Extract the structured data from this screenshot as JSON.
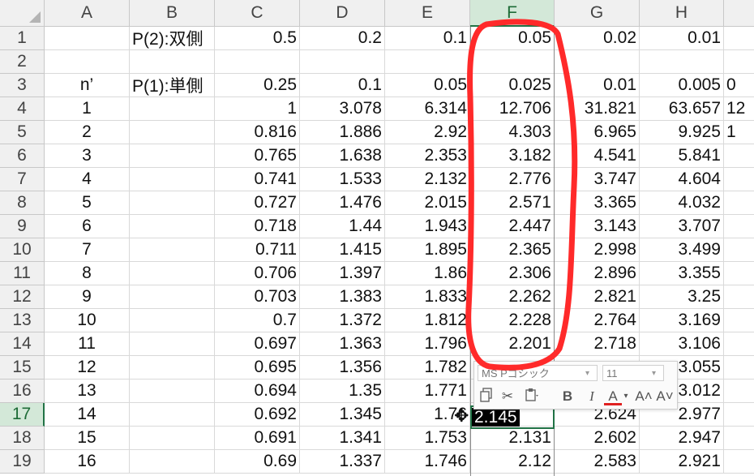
{
  "columns": [
    "A",
    "B",
    "C",
    "D",
    "E",
    "F",
    "G",
    "H"
  ],
  "selected_column": "F",
  "rows": [
    {
      "n": "1",
      "cells": [
        "",
        "P(2):双側",
        "0.5",
        "0.2",
        "0.1",
        "0.05",
        "0.02",
        "0.01"
      ]
    },
    {
      "n": "2",
      "cells": [
        "",
        "",
        "",
        "",
        "",
        "",
        "",
        ""
      ]
    },
    {
      "n": "3",
      "cells": [
        "n’",
        "P(1):単側",
        "0.25",
        "0.1",
        "0.05",
        "0.025",
        "0.01",
        "0.005"
      ]
    },
    {
      "n": "4",
      "cells": [
        "1",
        "",
        "1",
        "3.078",
        "6.314",
        "12.706",
        "31.821",
        "63.657"
      ]
    },
    {
      "n": "5",
      "cells": [
        "2",
        "",
        "0.816",
        "1.886",
        "2.92",
        "4.303",
        "6.965",
        "9.925"
      ]
    },
    {
      "n": "6",
      "cells": [
        "3",
        "",
        "0.765",
        "1.638",
        "2.353",
        "3.182",
        "4.541",
        "5.841"
      ]
    },
    {
      "n": "7",
      "cells": [
        "4",
        "",
        "0.741",
        "1.533",
        "2.132",
        "2.776",
        "3.747",
        "4.604"
      ]
    },
    {
      "n": "8",
      "cells": [
        "5",
        "",
        "0.727",
        "1.476",
        "2.015",
        "2.571",
        "3.365",
        "4.032"
      ]
    },
    {
      "n": "9",
      "cells": [
        "6",
        "",
        "0.718",
        "1.44",
        "1.943",
        "2.447",
        "3.143",
        "3.707"
      ]
    },
    {
      "n": "10",
      "cells": [
        "7",
        "",
        "0.711",
        "1.415",
        "1.895",
        "2.365",
        "2.998",
        "3.499"
      ]
    },
    {
      "n": "11",
      "cells": [
        "8",
        "",
        "0.706",
        "1.397",
        "1.86",
        "2.306",
        "2.896",
        "3.355"
      ]
    },
    {
      "n": "12",
      "cells": [
        "9",
        "",
        "0.703",
        "1.383",
        "1.833",
        "2.262",
        "2.821",
        "3.25"
      ]
    },
    {
      "n": "13",
      "cells": [
        "10",
        "",
        "0.7",
        "1.372",
        "1.812",
        "2.228",
        "2.764",
        "3.169"
      ]
    },
    {
      "n": "14",
      "cells": [
        "11",
        "",
        "0.697",
        "1.363",
        "1.796",
        "2.201",
        "2.718",
        "3.106"
      ]
    },
    {
      "n": "15",
      "cells": [
        "12",
        "",
        "0.695",
        "1.356",
        "1.782",
        "",
        "",
        "3.055"
      ]
    },
    {
      "n": "16",
      "cells": [
        "13",
        "",
        "0.694",
        "1.35",
        "1.771",
        "",
        "",
        "3.012"
      ]
    },
    {
      "n": "17",
      "cells": [
        "14",
        "",
        "0.692",
        "1.345",
        "1.76",
        "",
        "2.624",
        "2.977"
      ]
    },
    {
      "n": "18",
      "cells": [
        "15",
        "",
        "0.691",
        "1.341",
        "1.753",
        "2.131",
        "2.602",
        "2.947"
      ]
    },
    {
      "n": "19",
      "cells": [
        "16",
        "",
        "0.69",
        "1.337",
        "1.746",
        "2.12",
        "2.583",
        "2.921"
      ]
    }
  ],
  "partial_column_I": {
    "row1": "",
    "row3": "0",
    "row4": "12",
    "row5": "1"
  },
  "active_cell": {
    "ref": "F17",
    "value": "2.145"
  },
  "mini_toolbar": {
    "font": "MS Pゴシック",
    "size": "11",
    "bold": "B",
    "italic": "I",
    "font_color": "A",
    "grow_font": "A˄",
    "shrink_font": "A˅"
  },
  "annotation_color": "#ff2a2a",
  "accent_color": "#217346"
}
